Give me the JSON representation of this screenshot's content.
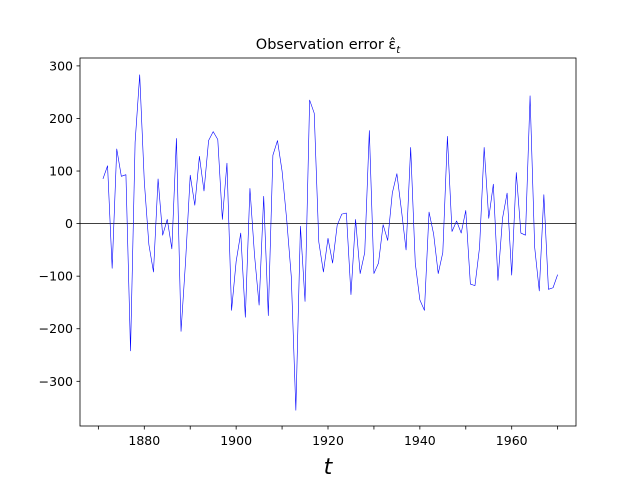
{
  "chart_data": {
    "type": "line",
    "title": "Observation error ε̂",
    "title_subscript": "t",
    "xlabel": "t",
    "ylabel": "",
    "xlim": [
      1866,
      1974
    ],
    "ylim": [
      -385,
      315
    ],
    "xticks": [
      1880,
      1900,
      1920,
      1940,
      1960
    ],
    "xticks_minor": [
      1870,
      1890,
      1910,
      1930,
      1950,
      1970
    ],
    "yticks": [
      -300,
      -200,
      -100,
      0,
      100,
      200,
      300
    ],
    "tick_labels_y": [
      "−300",
      "−200",
      "−100",
      "0",
      "100",
      "200",
      "300"
    ],
    "reference_line": 0,
    "grid": false,
    "series_color": "#0000ff",
    "reference_color": "#000000",
    "series": [
      {
        "x": [
          1871,
          1872,
          1873,
          1874,
          1875,
          1876,
          1877,
          1878,
          1879,
          1880,
          1881,
          1882,
          1883,
          1884,
          1885,
          1886,
          1887,
          1888,
          1889,
          1890,
          1891,
          1892,
          1893,
          1894,
          1895,
          1896,
          1897,
          1898,
          1899,
          1900,
          1901,
          1902,
          1903,
          1904,
          1905,
          1906,
          1907,
          1908,
          1909,
          1910,
          1911,
          1912,
          1913,
          1914,
          1915,
          1916,
          1917,
          1918,
          1919,
          1920,
          1921,
          1922,
          1923,
          1924,
          1925,
          1926,
          1927,
          1928,
          1929,
          1930,
          1931,
          1932,
          1933,
          1934,
          1935,
          1936,
          1937,
          1938,
          1939,
          1940,
          1941,
          1942,
          1943,
          1944,
          1945,
          1946,
          1947,
          1948,
          1949,
          1950,
          1951,
          1952,
          1953,
          1954,
          1955,
          1956,
          1957,
          1958,
          1959,
          1960,
          1961,
          1962,
          1963,
          1964,
          1965,
          1966,
          1967,
          1968,
          1969,
          1970
        ],
        "values": [
          85,
          110,
          -85,
          142,
          90,
          93,
          -242,
          155,
          283,
          80,
          -40,
          -92,
          85,
          -22,
          8,
          -48,
          162,
          -205,
          -70,
          92,
          35,
          128,
          62,
          158,
          175,
          160,
          8,
          115,
          -165,
          -72,
          -18,
          -178,
          67,
          -60,
          -155,
          52,
          -175,
          130,
          158,
          100,
          8,
          -100,
          -355,
          -5,
          -148,
          235,
          210,
          -35,
          -92,
          -28,
          -75,
          -3,
          18,
          20,
          -135,
          8,
          -95,
          -55,
          177,
          -95,
          -75,
          -2,
          -32,
          58,
          95,
          25,
          -50,
          145,
          -75,
          -145,
          -165,
          22,
          -20,
          -95,
          -55,
          166,
          -15,
          5,
          -18,
          25,
          -115,
          -118,
          -45,
          145,
          10,
          75,
          -108,
          10,
          58,
          -98,
          97,
          -18,
          -22,
          243,
          -45,
          -128,
          55,
          -125,
          -122,
          -97
        ]
      }
    ]
  }
}
